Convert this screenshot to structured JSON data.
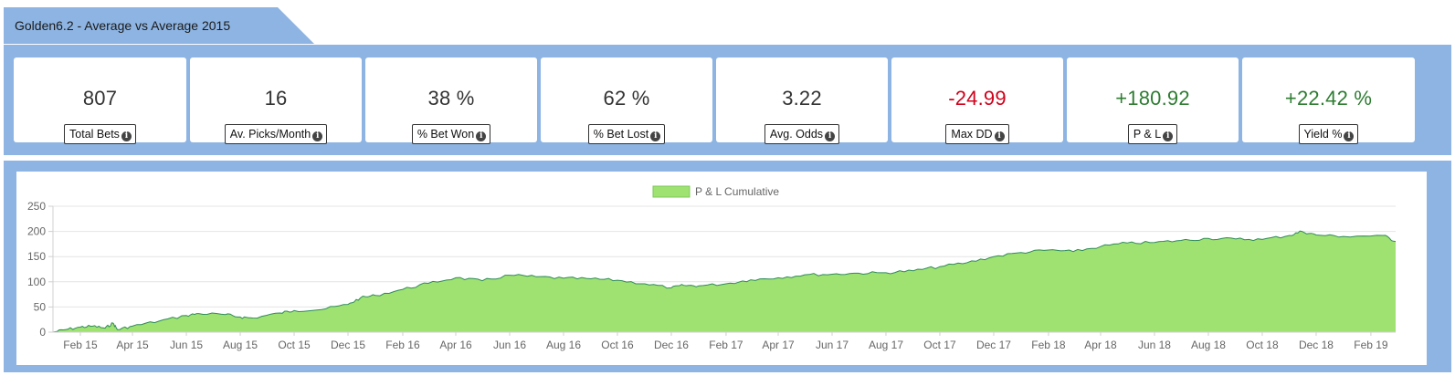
{
  "header": {
    "title": "Golden6.2 - Average vs Average 2015"
  },
  "stats": [
    {
      "value": "807",
      "label": "Total Bets",
      "tone": "neutral",
      "icon": "info-icon"
    },
    {
      "value": "16",
      "label": "Av. Picks/Month",
      "tone": "neutral",
      "icon": "info-icon"
    },
    {
      "value": "38 %",
      "label": "% Bet Won",
      "tone": "neutral",
      "icon": "info-icon"
    },
    {
      "value": "62 %",
      "label": "% Bet Lost",
      "tone": "neutral",
      "icon": "info-icon"
    },
    {
      "value": "3.22",
      "label": "Avg. Odds",
      "tone": "neutral",
      "icon": "info-icon"
    },
    {
      "value": "-24.99",
      "label": "Max DD",
      "tone": "negative",
      "icon": "info-icon"
    },
    {
      "value": "+180.92",
      "label": "P & L",
      "tone": "positive",
      "icon": "info-icon"
    },
    {
      "value": "+22.42 %",
      "label": "Yield %",
      "tone": "positive",
      "icon": "info-icon"
    }
  ],
  "colors": {
    "panel_bg": "#8db4e2",
    "area_fill": "#9fe272",
    "area_stroke": "#2e8b57",
    "negative": "#d0021b",
    "positive": "#2e7d32"
  },
  "chart_data": {
    "type": "area",
    "legend": "P & L Cumulative",
    "legend_position": "top-center",
    "grid": true,
    "ylim": [
      0,
      250
    ],
    "yticks": [
      0,
      50,
      100,
      150,
      200,
      250
    ],
    "xticks": [
      "Feb 15",
      "Apr 15",
      "Jun 15",
      "Aug 15",
      "Oct 15",
      "Dec 15",
      "Feb 16",
      "Apr 16",
      "Jun 16",
      "Aug 16",
      "Oct 16",
      "Dec 16",
      "Feb 17",
      "Apr 17",
      "Jun 17",
      "Aug 17",
      "Oct 17",
      "Dec 17",
      "Feb 18",
      "Apr 18",
      "Jun 18",
      "Aug 18",
      "Oct 18",
      "Dec 18",
      "Feb 19"
    ],
    "series": [
      {
        "name": "P & L Cumulative",
        "points": [
          [
            "2015-01-01",
            0
          ],
          [
            "2015-01-15",
            5
          ],
          [
            "2015-02-01",
            10
          ],
          [
            "2015-02-15",
            12
          ],
          [
            "2015-03-01",
            8
          ],
          [
            "2015-03-10",
            18
          ],
          [
            "2015-03-15",
            5
          ],
          [
            "2015-04-01",
            12
          ],
          [
            "2015-05-01",
            22
          ],
          [
            "2015-06-01",
            33
          ],
          [
            "2015-06-15",
            37
          ],
          [
            "2015-07-15",
            35
          ],
          [
            "2015-08-01",
            30
          ],
          [
            "2015-08-15",
            28
          ],
          [
            "2015-09-15",
            38
          ],
          [
            "2015-10-01",
            43
          ],
          [
            "2015-11-01",
            45
          ],
          [
            "2015-12-01",
            55
          ],
          [
            "2015-12-15",
            68
          ],
          [
            "2016-01-01",
            73
          ],
          [
            "2016-02-01",
            85
          ],
          [
            "2016-03-01",
            97
          ],
          [
            "2016-04-01",
            108
          ],
          [
            "2016-05-01",
            102
          ],
          [
            "2016-06-01",
            113
          ],
          [
            "2016-07-01",
            110
          ],
          [
            "2016-08-01",
            107
          ],
          [
            "2016-09-01",
            106
          ],
          [
            "2016-10-01",
            103
          ],
          [
            "2016-11-01",
            96
          ],
          [
            "2016-12-01",
            88
          ],
          [
            "2016-12-15",
            93
          ],
          [
            "2017-01-01",
            92
          ],
          [
            "2017-02-01",
            96
          ],
          [
            "2017-03-01",
            104
          ],
          [
            "2017-04-01",
            108
          ],
          [
            "2017-05-01",
            114
          ],
          [
            "2017-06-01",
            115
          ],
          [
            "2017-07-01",
            117
          ],
          [
            "2017-08-01",
            118
          ],
          [
            "2017-09-01",
            122
          ],
          [
            "2017-10-01",
            130
          ],
          [
            "2017-11-01",
            138
          ],
          [
            "2017-12-01",
            150
          ],
          [
            "2018-01-01",
            158
          ],
          [
            "2018-02-01",
            163
          ],
          [
            "2018-03-01",
            160
          ],
          [
            "2018-04-01",
            170
          ],
          [
            "2018-05-01",
            177
          ],
          [
            "2018-06-01",
            178
          ],
          [
            "2018-07-01",
            182
          ],
          [
            "2018-08-01",
            186
          ],
          [
            "2018-09-01",
            185
          ],
          [
            "2018-10-01",
            184
          ],
          [
            "2018-11-01",
            192
          ],
          [
            "2018-11-15",
            200
          ],
          [
            "2018-12-01",
            193
          ],
          [
            "2019-01-01",
            190
          ],
          [
            "2019-02-15",
            192
          ],
          [
            "2019-03-01",
            180
          ]
        ]
      }
    ]
  }
}
